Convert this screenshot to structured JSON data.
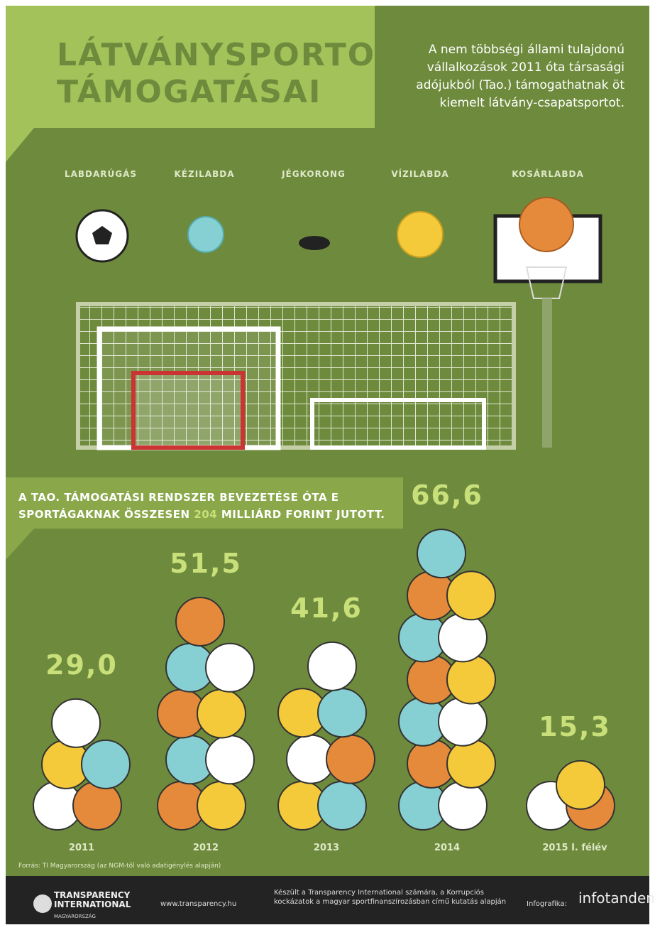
{
  "header": {
    "title": "LÁTVÁNYSPORTOK TÁMOGATÁSAI",
    "intro": "A nem többségi állami tulajdonú vállalkozások 2011 óta társasági adójukból (Tao.) támogathatnak öt kiemelt látvány-csapatsportot."
  },
  "sports": [
    "LABDARÚGÁS",
    "KÉZILABDA",
    "JÉGKORONG",
    "VÍZILABDA",
    "KOSÁRLABDA"
  ],
  "summary": {
    "before": "A TAO. TÁMOGATÁSI RENDSZER BEVEZETÉSE ÓTA E SPORTÁGAKNAK ÖSSZESEN",
    "highlight": "204",
    "after": "MILLIÁRD FORINT JUTOTT."
  },
  "chart_data": {
    "type": "pictogram",
    "categories": [
      "2011",
      "2012",
      "2013",
      "2014",
      "2015 I. félév"
    ],
    "values": [
      29.0,
      51.5,
      41.6,
      66.6,
      15.3
    ],
    "value_labels": [
      "29,0",
      "51,5",
      "41,6",
      "66,6",
      "15,3"
    ],
    "colors": [
      "#ffffff",
      "#e58a3b",
      "#f4c93a",
      "#86cfd3"
    ]
  },
  "source": "Forrás: TI Magyarország (az NGM-től való adatigénylés alapján)",
  "footer": {
    "org": "TRANSPARENCY INTERNATIONAL",
    "country": "MAGYARORSZÁG",
    "url": "www.transparency.hu",
    "credit": "Készült a Transparency International számára, a Korrupciós kockázatok a magyar sportfinanszírozásban című kutatás alapján",
    "infographic_label": "Infografika:",
    "studio": "infotandem"
  }
}
